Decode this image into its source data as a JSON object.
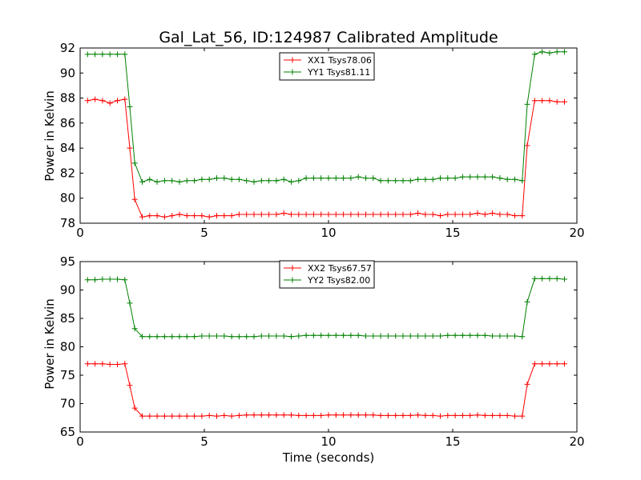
{
  "chart_data": [
    {
      "type": "line",
      "title": "Gal_Lat_56, ID:124987 Calibrated Amplitude",
      "xlabel": "",
      "ylabel": "Power in Kelvin",
      "xlim": [
        0,
        20
      ],
      "ylim": [
        78,
        92
      ],
      "xticks": [
        "0",
        "5",
        "10",
        "15",
        "20"
      ],
      "yticks": [
        "78",
        "80",
        "82",
        "84",
        "86",
        "88",
        "90",
        "92"
      ],
      "grid": false,
      "legend_position": "top-center",
      "x": [
        0.3,
        0.6,
        0.9,
        1.2,
        1.5,
        1.8,
        2.0,
        2.2,
        2.5,
        2.8,
        3.1,
        3.4,
        3.7,
        4.0,
        4.3,
        4.6,
        4.9,
        5.2,
        5.5,
        5.8,
        6.1,
        6.4,
        6.7,
        7.0,
        7.3,
        7.6,
        7.9,
        8.2,
        8.5,
        8.8,
        9.1,
        9.4,
        9.7,
        10.0,
        10.3,
        10.6,
        10.9,
        11.2,
        11.5,
        11.8,
        12.1,
        12.4,
        12.7,
        13.0,
        13.3,
        13.6,
        13.9,
        14.2,
        14.5,
        14.8,
        15.1,
        15.4,
        15.7,
        16.0,
        16.3,
        16.6,
        16.9,
        17.2,
        17.5,
        17.8,
        18.0,
        18.3,
        18.6,
        18.9,
        19.2,
        19.5
      ],
      "series": [
        {
          "name": "XX1 Tsys78.06",
          "color": "#ff0000",
          "values": [
            87.8,
            87.9,
            87.8,
            87.6,
            87.8,
            87.9,
            84.0,
            79.9,
            78.5,
            78.6,
            78.6,
            78.5,
            78.6,
            78.7,
            78.6,
            78.6,
            78.6,
            78.5,
            78.6,
            78.6,
            78.6,
            78.7,
            78.7,
            78.7,
            78.7,
            78.7,
            78.7,
            78.8,
            78.7,
            78.7,
            78.7,
            78.7,
            78.7,
            78.7,
            78.7,
            78.7,
            78.7,
            78.7,
            78.7,
            78.7,
            78.7,
            78.7,
            78.7,
            78.7,
            78.7,
            78.8,
            78.7,
            78.7,
            78.6,
            78.7,
            78.7,
            78.7,
            78.7,
            78.8,
            78.7,
            78.8,
            78.7,
            78.7,
            78.6,
            78.6,
            84.2,
            87.8,
            87.8,
            87.8,
            87.7,
            87.7
          ]
        },
        {
          "name": "YY1 Tsys81.11",
          "color": "#008000",
          "values": [
            91.5,
            91.5,
            91.5,
            91.5,
            91.5,
            91.5,
            87.3,
            82.8,
            81.3,
            81.5,
            81.3,
            81.4,
            81.4,
            81.3,
            81.4,
            81.4,
            81.5,
            81.5,
            81.6,
            81.6,
            81.5,
            81.5,
            81.4,
            81.3,
            81.4,
            81.4,
            81.4,
            81.5,
            81.3,
            81.4,
            81.6,
            81.6,
            81.6,
            81.6,
            81.6,
            81.6,
            81.6,
            81.7,
            81.6,
            81.6,
            81.4,
            81.4,
            81.4,
            81.4,
            81.4,
            81.5,
            81.5,
            81.5,
            81.6,
            81.6,
            81.6,
            81.7,
            81.7,
            81.7,
            81.7,
            81.7,
            81.6,
            81.5,
            81.5,
            81.4,
            87.5,
            91.5,
            91.7,
            91.6,
            91.7,
            91.7
          ]
        }
      ]
    },
    {
      "type": "line",
      "title": "",
      "xlabel": "Time (seconds)",
      "ylabel": "Power in Kelvin",
      "xlim": [
        0,
        20
      ],
      "ylim": [
        65,
        95
      ],
      "xticks": [
        "0",
        "5",
        "10",
        "15",
        "20"
      ],
      "yticks": [
        "65",
        "70",
        "75",
        "80",
        "85",
        "90",
        "95"
      ],
      "grid": false,
      "legend_position": "top-center",
      "x": [
        0.3,
        0.6,
        0.9,
        1.2,
        1.5,
        1.8,
        2.0,
        2.2,
        2.5,
        2.8,
        3.1,
        3.4,
        3.7,
        4.0,
        4.3,
        4.6,
        4.9,
        5.2,
        5.5,
        5.8,
        6.1,
        6.4,
        6.7,
        7.0,
        7.3,
        7.6,
        7.9,
        8.2,
        8.5,
        8.8,
        9.1,
        9.4,
        9.7,
        10.0,
        10.3,
        10.6,
        10.9,
        11.2,
        11.5,
        11.8,
        12.1,
        12.4,
        12.7,
        13.0,
        13.3,
        13.6,
        13.9,
        14.2,
        14.5,
        14.8,
        15.1,
        15.4,
        15.7,
        16.0,
        16.3,
        16.6,
        16.9,
        17.2,
        17.5,
        17.8,
        18.0,
        18.3,
        18.6,
        18.9,
        19.2,
        19.5
      ],
      "series": [
        {
          "name": "XX2 Tsys67.57",
          "color": "#ff0000",
          "values": [
            77.0,
            77.0,
            77.0,
            76.9,
            76.9,
            77.0,
            73.2,
            69.2,
            67.8,
            67.8,
            67.8,
            67.8,
            67.8,
            67.8,
            67.8,
            67.8,
            67.8,
            67.9,
            67.8,
            67.9,
            67.8,
            67.9,
            68.0,
            68.0,
            68.0,
            68.0,
            68.0,
            68.0,
            68.0,
            67.9,
            67.9,
            67.9,
            67.9,
            68.0,
            68.0,
            68.0,
            68.0,
            68.0,
            68.0,
            68.0,
            67.9,
            67.9,
            67.9,
            67.9,
            67.9,
            68.0,
            67.9,
            67.9,
            67.8,
            67.9,
            67.9,
            67.9,
            67.9,
            68.0,
            67.9,
            67.9,
            67.9,
            67.9,
            67.8,
            67.8,
            73.4,
            77.0,
            77.0,
            77.0,
            77.0,
            77.0
          ]
        },
        {
          "name": "YY2 Tsys82.00",
          "color": "#008000",
          "values": [
            91.8,
            91.8,
            91.9,
            91.9,
            91.9,
            91.8,
            87.7,
            83.2,
            81.8,
            81.8,
            81.8,
            81.8,
            81.8,
            81.8,
            81.8,
            81.8,
            81.9,
            81.9,
            81.9,
            81.9,
            81.8,
            81.8,
            81.8,
            81.8,
            81.9,
            81.9,
            81.9,
            81.9,
            81.8,
            81.9,
            82.0,
            82.0,
            82.0,
            82.0,
            82.0,
            82.0,
            82.0,
            82.0,
            81.9,
            81.9,
            81.9,
            81.9,
            81.9,
            81.9,
            81.9,
            81.9,
            81.9,
            81.9,
            81.9,
            82.0,
            82.0,
            82.0,
            82.0,
            82.0,
            82.0,
            81.9,
            81.9,
            81.9,
            81.9,
            81.8,
            87.9,
            92.0,
            92.0,
            92.0,
            92.0,
            91.9
          ]
        }
      ]
    }
  ]
}
